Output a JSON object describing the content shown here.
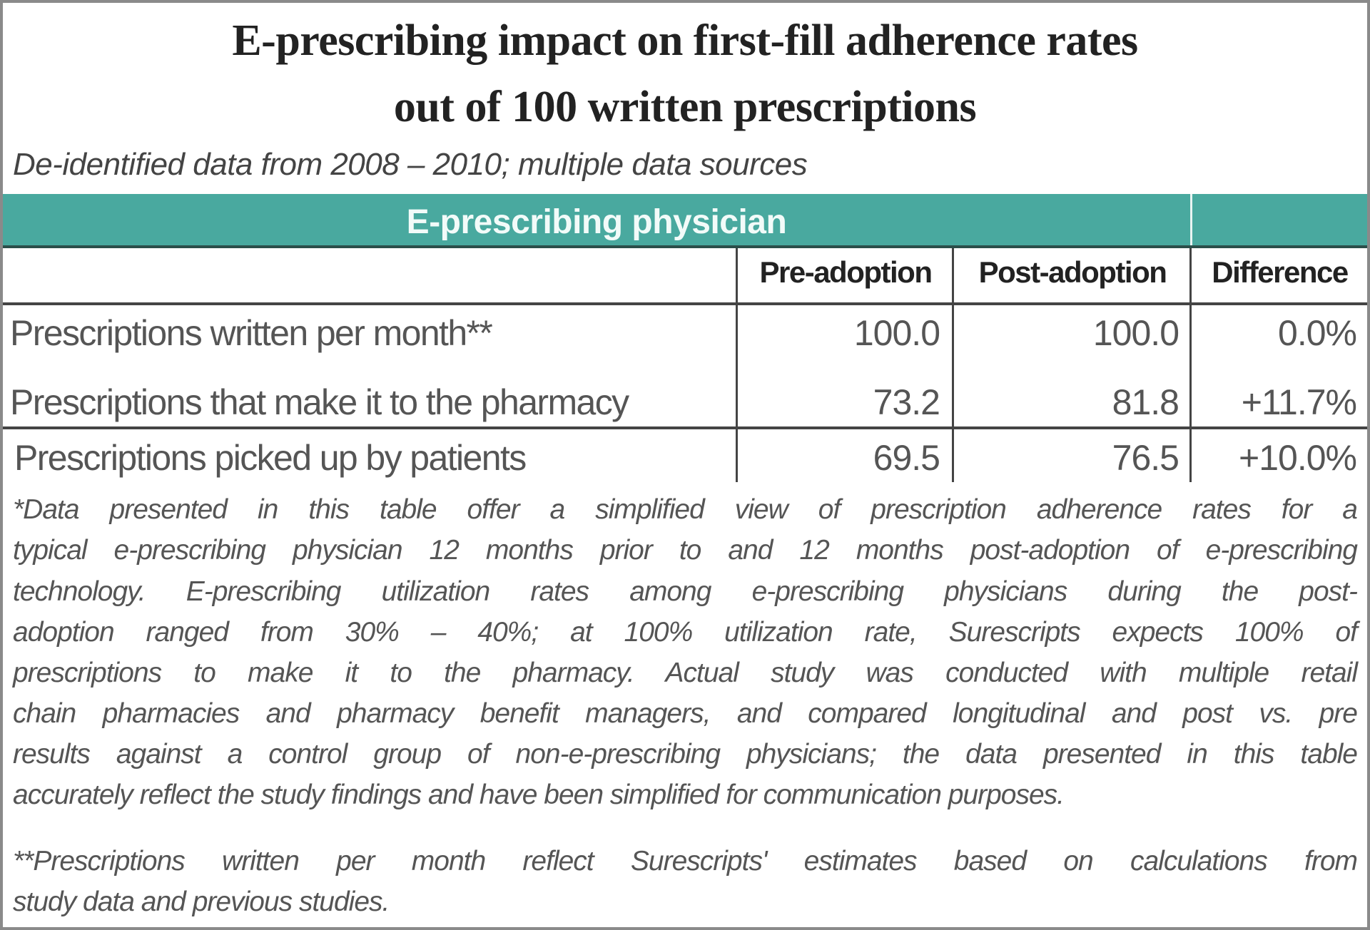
{
  "title": {
    "line1": "E-prescribing impact on first-fill adherence rates",
    "line2": "out of 100 written prescriptions"
  },
  "subtitle": "De-identified data from 2008 – 2010; multiple data sources",
  "band": {
    "label": "E-prescribing physician",
    "color": "#49a99f"
  },
  "table": {
    "columns": [
      "Pre-adoption",
      "Post-adoption",
      "Difference"
    ],
    "rows": [
      {
        "label": "Prescriptions written per month**",
        "pre": "100.0",
        "post": "100.0",
        "diff": "0.0%"
      },
      {
        "label": "Prescriptions that make it to the pharmacy",
        "pre": "73.2",
        "post": "81.8",
        "diff": "+11.7%"
      },
      {
        "label": "Prescriptions picked up by patients",
        "pre": "69.5",
        "post": "76.5",
        "diff": "+10.0%"
      }
    ]
  },
  "footnotes": {
    "note1": [
      "*Data presented in this table offer a simplified view of prescription adherence rates for a",
      "typical e-prescribing physician 12 months prior to and 12 months post-adoption of e-prescribing",
      "technology. E-prescribing utilization rates among e-prescribing physicians during the post-",
      "adoption ranged from 30% – 40%; at 100% utilization rate, Surescripts expects 100% of",
      "prescriptions to make it to the pharmacy. Actual study was conducted with multiple retail",
      "chain pharmacies and pharmacy benefit managers, and compared longitudinal and post vs. pre",
      "results against a control group of non-e-prescribing physicians; the data presented in this table",
      "accurately reflect the study findings and have been simplified for communication purposes."
    ],
    "note2": [
      "**Prescriptions written per month reflect Surescripts' estimates based on calculations from",
      "study data and previous studies."
    ]
  }
}
